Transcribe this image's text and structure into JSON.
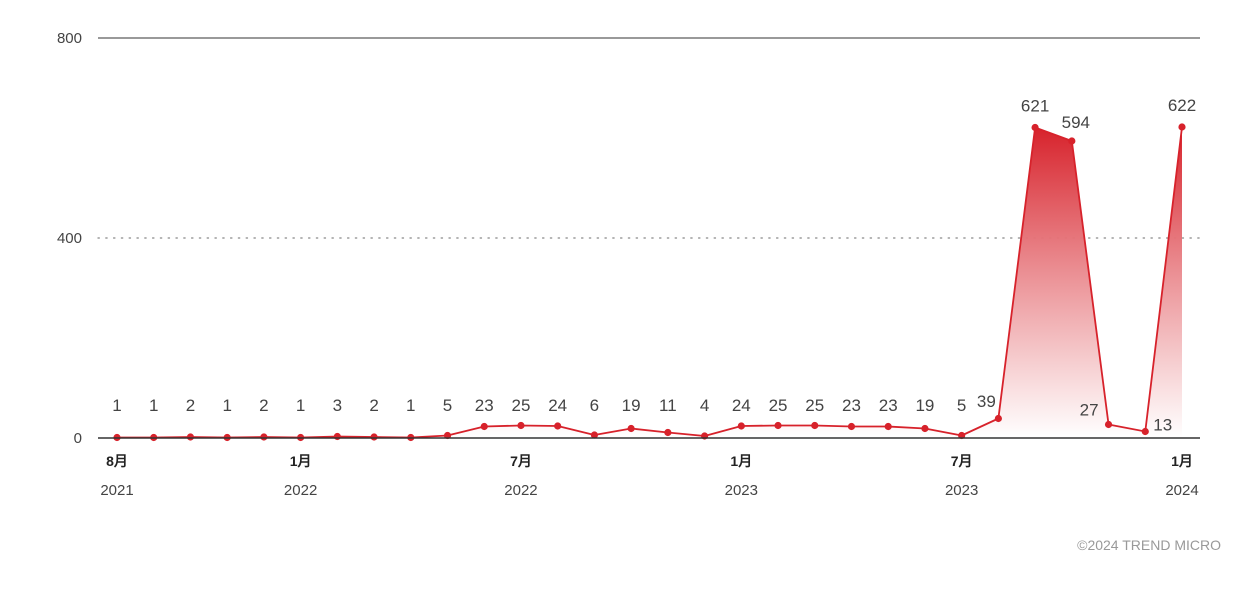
{
  "chart_data": {
    "type": "area",
    "title": "",
    "xlabel": "",
    "ylabel": "",
    "ylim": [
      0,
      800
    ],
    "y_ticks": [
      "0",
      "400",
      "800"
    ],
    "x": [
      "2021-08",
      "2021-09",
      "2021-10",
      "2021-11",
      "2021-12",
      "2022-01",
      "2022-02",
      "2022-03",
      "2022-04",
      "2022-05",
      "2022-06",
      "2022-07",
      "2022-08",
      "2022-09",
      "2022-10",
      "2022-11",
      "2022-12",
      "2023-01",
      "2023-02",
      "2023-03",
      "2023-04",
      "2023-05",
      "2023-06",
      "2023-07",
      "2023-08",
      "2023-09",
      "2023-10",
      "2023-11",
      "2023-12",
      "2024-01"
    ],
    "series": [
      {
        "values": [
          1,
          1,
          2,
          1,
          2,
          1,
          3,
          2,
          1,
          5,
          23,
          25,
          24,
          6,
          19,
          11,
          4,
          24,
          25,
          25,
          23,
          23,
          19,
          5,
          39,
          621,
          594,
          27,
          13,
          622
        ]
      }
    ],
    "x_tick_labels": [
      {
        "index": 0,
        "month": "8月",
        "year": "2021"
      },
      {
        "index": 5,
        "month": "1月",
        "year": "2022"
      },
      {
        "index": 11,
        "month": "7月",
        "year": "2022"
      },
      {
        "index": 17,
        "month": "1月",
        "year": "2023"
      },
      {
        "index": 23,
        "month": "7月",
        "year": "2023"
      },
      {
        "index": 29,
        "month": "1月",
        "year": "2024"
      }
    ],
    "grid": true,
    "legend": "none",
    "colors": {
      "line": "#d7222b",
      "area_top": "#d7222b",
      "area_bottom": "#ffffff",
      "axis": "#333333",
      "grid": "#888888",
      "label": "#444444"
    }
  },
  "footer": {
    "copyright": "©2024 TREND MICRO"
  }
}
